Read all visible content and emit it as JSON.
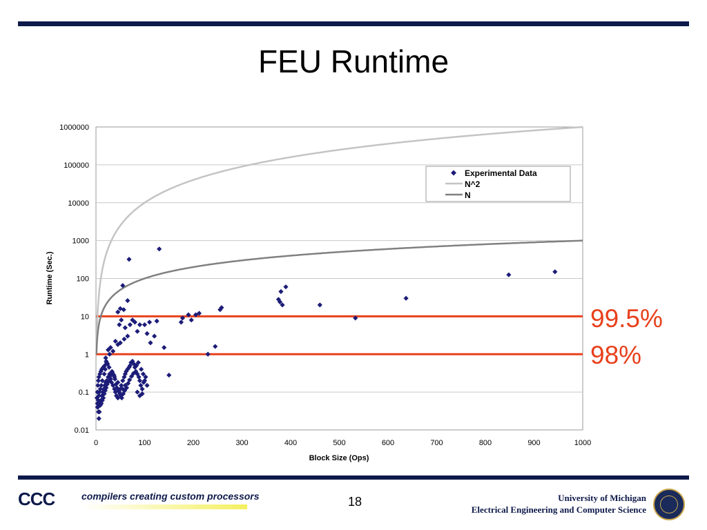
{
  "slide": {
    "title": "FEU Runtime",
    "page_number": "18",
    "footer_logo": "CCC",
    "footer_tagline": "compilers creating custom processors",
    "university_line1": "University of Michigan",
    "university_line2": "Electrical Engineering and Computer Science"
  },
  "thresholds": [
    {
      "label": "99.5%",
      "value": 10,
      "color": "#e8401c"
    },
    {
      "label": "98%",
      "value": 1,
      "color": "#e8401c"
    }
  ],
  "chart_data": {
    "type": "scatter",
    "title": "",
    "xlabel": "Block Size (Ops)",
    "ylabel": "Runtime (Sec.)",
    "xlim": [
      0,
      1000
    ],
    "ylim": [
      0.01,
      1000000
    ],
    "yscale": "log",
    "x_ticks": [
      "0",
      "100",
      "200",
      "300",
      "400",
      "500",
      "600",
      "700",
      "800",
      "900",
      "1000"
    ],
    "y_ticks": [
      "0.01",
      "0.1",
      "1",
      "10",
      "100",
      "1000",
      "10000",
      "100000",
      "1000000"
    ],
    "grid": "horizontal",
    "legend_position": "top-right",
    "colors": {
      "points": "#1c1c78",
      "n2": "#c4c4c4",
      "n": "#808080"
    },
    "series": [
      {
        "name": "Experimental Data",
        "kind": "scatter",
        "points": [
          [
            130,
            600
          ],
          [
            68,
            320
          ],
          [
            55,
            65
          ],
          [
            65,
            26
          ],
          [
            50,
            16
          ],
          [
            57,
            15
          ],
          [
            45,
            13
          ],
          [
            52,
            8
          ],
          [
            48,
            6
          ],
          [
            60,
            5
          ],
          [
            70,
            6
          ],
          [
            75,
            8
          ],
          [
            80,
            7
          ],
          [
            90,
            6
          ],
          [
            100,
            6
          ],
          [
            110,
            7
          ],
          [
            125,
            7.5
          ],
          [
            85,
            4
          ],
          [
            105,
            3.5
          ],
          [
            65,
            3
          ],
          [
            58,
            2.5
          ],
          [
            50,
            2
          ],
          [
            45,
            1.8
          ],
          [
            40,
            2.2
          ],
          [
            30,
            1.5
          ],
          [
            35,
            1.2
          ],
          [
            25,
            1.3
          ],
          [
            28,
            1
          ],
          [
            20,
            0.8
          ],
          [
            22,
            0.6
          ],
          [
            18,
            0.5
          ],
          [
            15,
            0.45
          ],
          [
            12,
            0.4
          ],
          [
            10,
            0.35
          ],
          [
            8,
            0.3
          ],
          [
            6,
            0.25
          ],
          [
            5,
            0.2
          ],
          [
            4,
            0.15
          ],
          [
            3,
            0.1
          ],
          [
            2,
            0.07
          ],
          [
            3,
            0.05
          ],
          [
            4,
            0.04
          ],
          [
            5,
            0.03
          ],
          [
            6,
            0.02
          ],
          [
            7,
            0.03
          ],
          [
            8,
            0.05
          ],
          [
            10,
            0.06
          ],
          [
            12,
            0.08
          ],
          [
            14,
            0.1
          ],
          [
            16,
            0.12
          ],
          [
            18,
            0.15
          ],
          [
            20,
            0.18
          ],
          [
            22,
            0.2
          ],
          [
            25,
            0.25
          ],
          [
            28,
            0.3
          ],
          [
            30,
            0.22
          ],
          [
            32,
            0.18
          ],
          [
            35,
            0.15
          ],
          [
            38,
            0.12
          ],
          [
            40,
            0.1
          ],
          [
            42,
            0.08
          ],
          [
            45,
            0.07
          ],
          [
            48,
            0.1
          ],
          [
            50,
            0.12
          ],
          [
            52,
            0.15
          ],
          [
            55,
            0.2
          ],
          [
            58,
            0.25
          ],
          [
            60,
            0.3
          ],
          [
            62,
            0.35
          ],
          [
            65,
            0.4
          ],
          [
            68,
            0.45
          ],
          [
            70,
            0.5
          ],
          [
            72,
            0.6
          ],
          [
            75,
            0.65
          ],
          [
            78,
            0.55
          ],
          [
            80,
            0.45
          ],
          [
            82,
            0.35
          ],
          [
            85,
            0.3
          ],
          [
            88,
            0.25
          ],
          [
            90,
            0.2
          ],
          [
            92,
            0.15
          ],
          [
            95,
            0.12
          ],
          [
            98,
            0.18
          ],
          [
            100,
            0.2
          ],
          [
            102,
            0.25
          ],
          [
            105,
            0.15
          ],
          [
            95,
            0.09
          ],
          [
            90,
            0.08
          ],
          [
            85,
            0.1
          ],
          [
            60,
            0.15
          ],
          [
            55,
            0.12
          ],
          [
            45,
            0.18
          ],
          [
            38,
            0.25
          ],
          [
            33,
            0.35
          ],
          [
            27,
            0.45
          ],
          [
            24,
            0.55
          ],
          [
            21,
            0.65
          ],
          [
            19,
            0.4
          ],
          [
            17,
            0.3
          ],
          [
            13,
            0.2
          ],
          [
            11,
            0.15
          ],
          [
            9,
            0.12
          ],
          [
            7,
            0.1
          ],
          [
            6,
            0.08
          ],
          [
            5,
            0.06
          ],
          [
            4,
            0.05
          ],
          [
            3,
            0.04
          ],
          [
            9,
            0.045
          ],
          [
            11,
            0.05
          ],
          [
            13,
            0.06
          ],
          [
            15,
            0.07
          ],
          [
            17,
            0.09
          ],
          [
            19,
            0.11
          ],
          [
            21,
            0.13
          ],
          [
            23,
            0.16
          ],
          [
            26,
            0.19
          ],
          [
            29,
            0.23
          ],
          [
            31,
            0.28
          ],
          [
            34,
            0.32
          ],
          [
            37,
            0.28
          ],
          [
            39,
            0.22
          ],
          [
            41,
            0.16
          ],
          [
            43,
            0.13
          ],
          [
            46,
            0.11
          ],
          [
            49,
            0.09
          ],
          [
            51,
            0.08
          ],
          [
            53,
            0.07
          ],
          [
            56,
            0.09
          ],
          [
            59,
            0.11
          ],
          [
            63,
            0.13
          ],
          [
            66,
            0.17
          ],
          [
            69,
            0.21
          ],
          [
            73,
            0.26
          ],
          [
            77,
            0.31
          ],
          [
            83,
            0.5
          ],
          [
            87,
            0.6
          ],
          [
            93,
            0.4
          ],
          [
            97,
            0.3
          ],
          [
            150,
            0.28
          ],
          [
            140,
            1.5
          ],
          [
            112,
            2
          ],
          [
            120,
            3
          ],
          [
            175,
            7
          ],
          [
            178,
            9
          ],
          [
            190,
            11
          ],
          [
            196,
            8
          ],
          [
            205,
            11
          ],
          [
            212,
            12
          ],
          [
            230,
            1
          ],
          [
            245,
            1.6
          ],
          [
            255,
            15
          ],
          [
            258,
            17
          ],
          [
            375,
            28
          ],
          [
            378,
            24
          ],
          [
            380,
            45
          ],
          [
            383,
            20
          ],
          [
            390,
            60
          ],
          [
            460,
            20
          ],
          [
            533,
            9
          ],
          [
            637,
            30
          ],
          [
            848,
            125
          ],
          [
            943,
            150
          ]
        ]
      },
      {
        "name": "N^2",
        "kind": "line",
        "formula": "x^2"
      },
      {
        "name": "N",
        "kind": "line",
        "formula": "x"
      }
    ]
  }
}
